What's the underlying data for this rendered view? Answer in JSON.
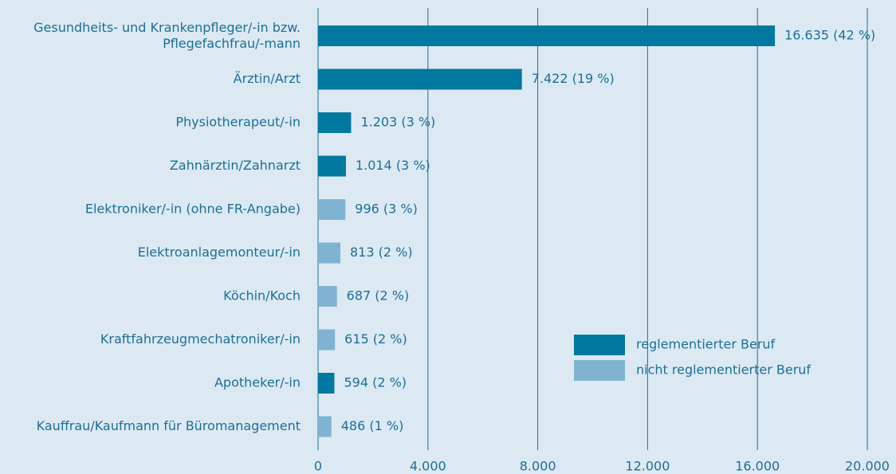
{
  "chart_data": {
    "type": "bar",
    "orientation": "horizontal",
    "categories": [
      "Gesundheits- und Krankenpfleger/-in bzw.\nPflegefachfrau/-mann",
      "Ärztin/Arzt",
      "Physiotherapeut/-in",
      "Zahnärztin/Zahnarzt",
      "Elektroniker/-in (ohne FR-Angabe)",
      "Elektroanlagemonteur/-in",
      "Köchin/Koch",
      "Kraftfahrzeugmechatroniker/-in",
      "Apotheker/-in",
      "Kauffrau/Kaufmann für Büromanagement"
    ],
    "series": [
      {
        "name": "reglementierter Beruf",
        "color": "#00789f",
        "values": [
          16635,
          7422,
          1203,
          1014,
          null,
          null,
          null,
          null,
          594,
          null
        ],
        "value_labels": [
          "16.635 (42 %)",
          "7.422 (19 %)",
          "1.203 (3 %)",
          "1.014 (3 %)",
          null,
          null,
          null,
          null,
          "594 (2 %)",
          null
        ]
      },
      {
        "name": "nicht reglementierter Beruf",
        "color": "#80b3d1",
        "values": [
          null,
          null,
          null,
          null,
          996,
          813,
          687,
          615,
          null,
          486
        ],
        "value_labels": [
          null,
          null,
          null,
          null,
          "996 (3 %)",
          "813 (2 %)",
          "687 (2 %)",
          "615 (2 %)",
          null,
          "486 (1 %)"
        ]
      }
    ],
    "xlim": [
      0,
      20000
    ],
    "xticks": [
      0,
      {
        "value": 4000,
        "label": "4.000"
      },
      {
        "value": 8000,
        "label": "8.000"
      },
      {
        "value": 12000,
        "label": "12.000"
      },
      {
        "value": 16000,
        "label": "16.000"
      },
      {
        "value": 20000,
        "label": "20.000"
      }
    ],
    "grid": true
  }
}
